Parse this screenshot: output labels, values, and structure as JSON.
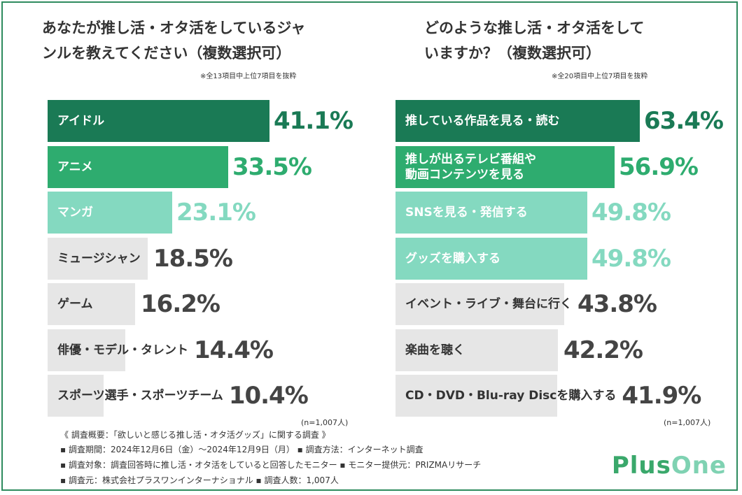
{
  "left": {
    "title_lines": [
      "あなたが推し活・オタ活をしているジャ",
      "ンルを教えてください（複数選択可）"
    ],
    "note": "※全13項目中上位7項目を抜粋",
    "n_note": "(n=1,007人)"
  },
  "right": {
    "title_lines": [
      "どのような推し活・オタ活をして",
      "いますか？（複数選択可）"
    ],
    "note": "※全20項目中上位7項目を抜粋",
    "n_note": "(n=1,007人)"
  },
  "colors": {
    "dark": "#1a7a55",
    "mid": "#2eac6f",
    "light": "#84d9c0",
    "gray": "#e6e6e6",
    "border": "#2e8b5e"
  },
  "chart_data": [
    {
      "type": "bar",
      "orientation": "horizontal",
      "title": "あなたが推し活・オタ活をしているジャンルを教えてください（複数選択可）",
      "categories": [
        "アイドル",
        "アニメ",
        "マンガ",
        "ミュージシャン",
        "ゲーム",
        "俳優・モデル・タレント",
        "スポーツ選手・スポーツチーム"
      ],
      "values": [
        41.1,
        33.5,
        23.1,
        18.5,
        16.2,
        14.4,
        10.4
      ],
      "labels": [
        "41.1%",
        "33.5%",
        "23.1%",
        "18.5%",
        "16.2%",
        "14.4%",
        "10.4%"
      ],
      "tiers": [
        "dark",
        "mid",
        "light",
        "gray",
        "gray",
        "gray",
        "gray"
      ],
      "xlim": [
        0,
        42
      ]
    },
    {
      "type": "bar",
      "orientation": "horizontal",
      "title": "どのような推し活・オタ活をしていますか？（複数選択可）",
      "categories": [
        "推している作品を見る・読む",
        "推しが出るテレビ番組や\n動画コンテンツを見る",
        "SNSを見る・発信する",
        "グッズを購入する",
        "イベント・ライブ・舞台に行く",
        "楽曲を聴く",
        "CD・DVD・Blu-ray Discを購入する"
      ],
      "values": [
        63.4,
        56.9,
        49.8,
        49.8,
        43.8,
        42.2,
        41.9
      ],
      "labels": [
        "63.4%",
        "56.9%",
        "49.8%",
        "49.8%",
        "43.8%",
        "42.2%",
        "41.9%"
      ],
      "tiers": [
        "dark",
        "mid",
        "light",
        "light",
        "gray",
        "gray",
        "gray"
      ],
      "xlim": [
        0,
        90
      ]
    }
  ],
  "footer": {
    "lines": [
      "《 調査概要：「欲しいと感じる推し活・オタ活グッズ」に関する調査 》",
      "▪ 調査期間：2024年12月6日（金）〜2024年12月9日（月）  ▪ 調査方法：インターネット調査",
      "▪ 調査対象：調査回答時に推し活・オタ活をしていると回答したモニター  ▪ モニター提供元：PRIZMAリサーチ",
      "▪ 調査元：株式会社プラスワンインターナショナル               ▪ 調査人数：1,007人"
    ]
  },
  "logo": {
    "part1": "Plus",
    "part2": "One"
  }
}
